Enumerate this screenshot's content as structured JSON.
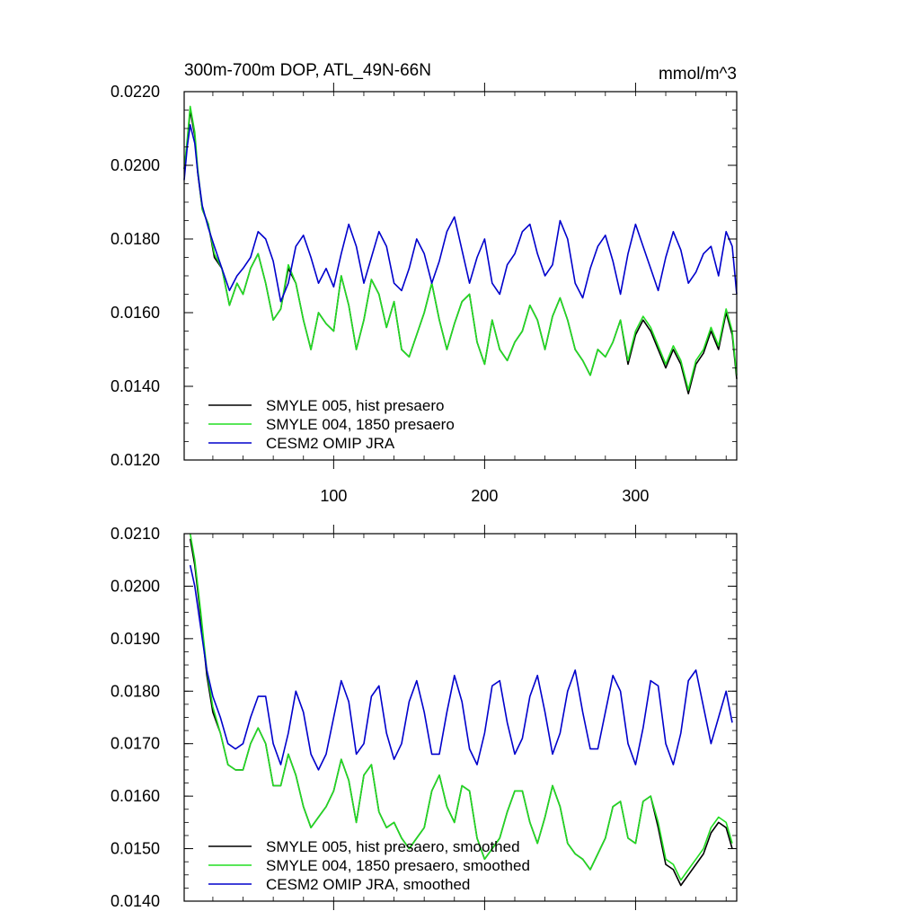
{
  "chart_data": [
    {
      "type": "line",
      "title": "300m-700m DOP, ATL_49N-66N",
      "units": "mmol/m^3",
      "xlim": [
        1,
        367
      ],
      "ylim": [
        0.012,
        0.022
      ],
      "x_ticks": [
        100,
        200,
        300
      ],
      "x_tick_labels": [
        "100",
        "200",
        "300"
      ],
      "y_ticks": [
        0.012,
        0.014,
        0.016,
        0.018,
        0.02,
        0.022
      ],
      "y_tick_labels": [
        "0.0120",
        "0.0140",
        "0.0160",
        "0.0180",
        "0.0200",
        "0.0220"
      ],
      "x_minor_step": 20,
      "y_minor_step": 0.0005,
      "legend": "bottom-left",
      "series": [
        {
          "name": "SMYLE 005, hist presaero",
          "color": "#000000",
          "x": [
            1,
            3,
            5,
            8,
            10,
            13,
            17,
            21,
            26,
            31,
            36,
            40,
            45,
            50,
            55,
            60,
            65,
            70,
            75,
            80,
            85,
            90,
            95,
            100,
            105,
            110,
            115,
            120,
            125,
            130,
            135,
            140,
            145,
            150,
            155,
            160,
            165,
            170,
            175,
            180,
            185,
            190,
            195,
            200,
            205,
            210,
            215,
            220,
            225,
            230,
            235,
            240,
            245,
            250,
            255,
            260,
            265,
            270,
            275,
            280,
            285,
            290,
            295,
            300,
            305,
            310,
            315,
            320,
            325,
            330,
            335,
            340,
            345,
            350,
            355,
            360,
            364,
            367
          ],
          "values": [
            0.0199,
            0.0206,
            0.0215,
            0.0208,
            0.0198,
            0.0188,
            0.0184,
            0.0175,
            0.0172,
            0.0162,
            0.0168,
            0.0165,
            0.0172,
            0.0176,
            0.0168,
            0.0158,
            0.0161,
            0.0172,
            0.0168,
            0.0158,
            0.015,
            0.016,
            0.0157,
            0.0155,
            0.017,
            0.0162,
            0.015,
            0.0158,
            0.0169,
            0.0165,
            0.0156,
            0.0163,
            0.015,
            0.0148,
            0.0154,
            0.016,
            0.0168,
            0.0158,
            0.015,
            0.0157,
            0.0163,
            0.0165,
            0.0152,
            0.0146,
            0.0158,
            0.015,
            0.0147,
            0.0152,
            0.0155,
            0.0162,
            0.0158,
            0.015,
            0.0159,
            0.0164,
            0.0158,
            0.015,
            0.0147,
            0.0143,
            0.015,
            0.0148,
            0.0152,
            0.0158,
            0.0146,
            0.0154,
            0.0158,
            0.0155,
            0.015,
            0.0145,
            0.015,
            0.0146,
            0.0138,
            0.0146,
            0.0149,
            0.0155,
            0.015,
            0.016,
            0.0154,
            0.0142
          ]
        },
        {
          "name": "SMYLE 004, 1850 presaero",
          "color": "#22dd22",
          "x": [
            1,
            3,
            5,
            8,
            10,
            13,
            17,
            21,
            26,
            31,
            36,
            40,
            45,
            50,
            55,
            60,
            65,
            70,
            75,
            80,
            85,
            90,
            95,
            100,
            105,
            110,
            115,
            120,
            125,
            130,
            135,
            140,
            145,
            150,
            155,
            160,
            165,
            170,
            175,
            180,
            185,
            190,
            195,
            200,
            205,
            210,
            215,
            220,
            225,
            230,
            235,
            240,
            245,
            250,
            255,
            260,
            265,
            270,
            275,
            280,
            285,
            290,
            295,
            300,
            305,
            310,
            315,
            320,
            325,
            330,
            335,
            340,
            345,
            350,
            355,
            360,
            364,
            367
          ],
          "values": [
            0.0199,
            0.0207,
            0.0216,
            0.0209,
            0.0199,
            0.0188,
            0.0184,
            0.0176,
            0.0172,
            0.0162,
            0.0168,
            0.0165,
            0.0172,
            0.0176,
            0.0168,
            0.0158,
            0.0161,
            0.0173,
            0.0168,
            0.0158,
            0.015,
            0.016,
            0.0157,
            0.0155,
            0.017,
            0.0162,
            0.015,
            0.0158,
            0.0169,
            0.0165,
            0.0156,
            0.0163,
            0.015,
            0.0148,
            0.0154,
            0.016,
            0.0168,
            0.0158,
            0.015,
            0.0157,
            0.0163,
            0.0165,
            0.0152,
            0.0146,
            0.0158,
            0.015,
            0.0147,
            0.0152,
            0.0155,
            0.0162,
            0.0158,
            0.015,
            0.0159,
            0.0164,
            0.0158,
            0.015,
            0.0147,
            0.0143,
            0.015,
            0.0148,
            0.0152,
            0.0158,
            0.0147,
            0.0155,
            0.0159,
            0.0156,
            0.0151,
            0.0146,
            0.0151,
            0.0147,
            0.0139,
            0.0147,
            0.015,
            0.0156,
            0.0151,
            0.0161,
            0.0155,
            0.0143
          ]
        },
        {
          "name": "CESM2 OMIP JRA",
          "color": "#0000cc",
          "x": [
            1,
            3,
            5,
            8,
            10,
            13,
            17,
            21,
            26,
            31,
            36,
            40,
            45,
            50,
            55,
            60,
            65,
            70,
            75,
            80,
            85,
            90,
            95,
            100,
            105,
            110,
            115,
            120,
            125,
            130,
            135,
            140,
            145,
            150,
            155,
            160,
            165,
            170,
            175,
            180,
            185,
            190,
            195,
            200,
            205,
            210,
            215,
            220,
            225,
            230,
            235,
            240,
            245,
            250,
            255,
            260,
            265,
            270,
            275,
            280,
            285,
            290,
            295,
            300,
            305,
            310,
            315,
            320,
            325,
            330,
            335,
            340,
            345,
            350,
            355,
            360,
            364,
            367
          ],
          "values": [
            0.0196,
            0.0205,
            0.0211,
            0.0206,
            0.0198,
            0.0189,
            0.0183,
            0.0178,
            0.0172,
            0.0166,
            0.017,
            0.0172,
            0.0175,
            0.0182,
            0.018,
            0.0174,
            0.0163,
            0.0168,
            0.0178,
            0.0181,
            0.0175,
            0.0168,
            0.0172,
            0.0167,
            0.0176,
            0.0184,
            0.0178,
            0.0168,
            0.0175,
            0.0182,
            0.0178,
            0.0168,
            0.0166,
            0.0172,
            0.018,
            0.0176,
            0.0168,
            0.0174,
            0.0182,
            0.0186,
            0.0177,
            0.0168,
            0.0175,
            0.018,
            0.0168,
            0.0165,
            0.0173,
            0.0176,
            0.0182,
            0.0184,
            0.0176,
            0.017,
            0.0173,
            0.0185,
            0.018,
            0.0168,
            0.0164,
            0.0172,
            0.0178,
            0.0181,
            0.0174,
            0.0165,
            0.0176,
            0.0184,
            0.0178,
            0.0172,
            0.0166,
            0.0175,
            0.0182,
            0.0177,
            0.0168,
            0.0171,
            0.0176,
            0.0178,
            0.017,
            0.0182,
            0.0178,
            0.0165
          ]
        }
      ]
    },
    {
      "type": "line",
      "title": "",
      "xlim": [
        1,
        367
      ],
      "ylim": [
        0.014,
        0.021
      ],
      "x_ticks": [
        100,
        200,
        300
      ],
      "x_tick_labels": [
        "",
        "",
        ""
      ],
      "y_ticks": [
        0.014,
        0.015,
        0.016,
        0.017,
        0.018,
        0.019,
        0.02,
        0.021
      ],
      "y_tick_labels": [
        "0.0140",
        "0.0150",
        "0.0160",
        "0.0170",
        "0.0180",
        "0.0190",
        "0.0200",
        "0.0210"
      ],
      "x_minor_step": 20,
      "y_minor_step": 0.00025,
      "legend": "bottom-left",
      "series": [
        {
          "name": "SMYLE 005, hist presaero, smoothed",
          "color": "#000000",
          "x": [
            5,
            8,
            12,
            16,
            20,
            25,
            30,
            35,
            40,
            45,
            50,
            55,
            60,
            65,
            70,
            75,
            80,
            85,
            90,
            95,
            100,
            105,
            110,
            115,
            120,
            125,
            130,
            135,
            140,
            145,
            150,
            155,
            160,
            165,
            170,
            175,
            180,
            185,
            190,
            195,
            200,
            205,
            210,
            215,
            220,
            225,
            230,
            235,
            240,
            245,
            250,
            255,
            260,
            265,
            270,
            275,
            280,
            285,
            290,
            295,
            300,
            305,
            310,
            315,
            320,
            325,
            330,
            335,
            340,
            345,
            350,
            355,
            360,
            364
          ],
          "values": [
            0.0209,
            0.0204,
            0.0194,
            0.0183,
            0.0176,
            0.0172,
            0.0166,
            0.0165,
            0.0165,
            0.017,
            0.0173,
            0.017,
            0.0162,
            0.0162,
            0.0168,
            0.0164,
            0.0158,
            0.0154,
            0.0156,
            0.0158,
            0.0161,
            0.0167,
            0.0163,
            0.0155,
            0.0164,
            0.0166,
            0.0157,
            0.0154,
            0.0155,
            0.0152,
            0.015,
            0.0152,
            0.0154,
            0.0161,
            0.0164,
            0.0158,
            0.0155,
            0.0162,
            0.0161,
            0.0152,
            0.0148,
            0.015,
            0.0152,
            0.0157,
            0.0161,
            0.0161,
            0.0155,
            0.0151,
            0.0156,
            0.0162,
            0.0158,
            0.0151,
            0.0149,
            0.0148,
            0.0146,
            0.0149,
            0.0152,
            0.0158,
            0.0159,
            0.0152,
            0.0151,
            0.0159,
            0.016,
            0.0154,
            0.0147,
            0.0146,
            0.0143,
            0.0145,
            0.0147,
            0.0149,
            0.0153,
            0.0155,
            0.0154,
            0.015
          ]
        },
        {
          "name": "SMYLE 004, 1850 presaero, smoothed",
          "color": "#22dd22",
          "x": [
            5,
            8,
            12,
            16,
            20,
            25,
            30,
            35,
            40,
            45,
            50,
            55,
            60,
            65,
            70,
            75,
            80,
            85,
            90,
            95,
            100,
            105,
            110,
            115,
            120,
            125,
            130,
            135,
            140,
            145,
            150,
            155,
            160,
            165,
            170,
            175,
            180,
            185,
            190,
            195,
            200,
            205,
            210,
            215,
            220,
            225,
            230,
            235,
            240,
            245,
            250,
            255,
            260,
            265,
            270,
            275,
            280,
            285,
            290,
            295,
            300,
            305,
            310,
            315,
            320,
            325,
            330,
            335,
            340,
            345,
            350,
            355,
            360,
            364
          ],
          "values": [
            0.021,
            0.0205,
            0.0195,
            0.0184,
            0.0177,
            0.0172,
            0.0166,
            0.0165,
            0.0165,
            0.017,
            0.0173,
            0.017,
            0.0162,
            0.0162,
            0.0168,
            0.0164,
            0.0158,
            0.0154,
            0.0156,
            0.0158,
            0.0161,
            0.0167,
            0.0163,
            0.0155,
            0.0164,
            0.0166,
            0.0157,
            0.0154,
            0.0155,
            0.0152,
            0.015,
            0.0152,
            0.0154,
            0.0161,
            0.0164,
            0.0158,
            0.0155,
            0.0162,
            0.0161,
            0.0152,
            0.0148,
            0.015,
            0.0152,
            0.0157,
            0.0161,
            0.0161,
            0.0155,
            0.0151,
            0.0156,
            0.0162,
            0.0158,
            0.0151,
            0.0149,
            0.0148,
            0.0146,
            0.0149,
            0.0152,
            0.0158,
            0.0159,
            0.0152,
            0.0151,
            0.0159,
            0.016,
            0.0155,
            0.0148,
            0.0147,
            0.0144,
            0.0146,
            0.0148,
            0.015,
            0.0154,
            0.0156,
            0.0155,
            0.0151
          ]
        },
        {
          "name": "CESM2 OMIP JRA, smoothed",
          "color": "#0000cc",
          "x": [
            5,
            8,
            12,
            16,
            20,
            25,
            30,
            35,
            40,
            45,
            50,
            55,
            60,
            65,
            70,
            75,
            80,
            85,
            90,
            95,
            100,
            105,
            110,
            115,
            120,
            125,
            130,
            135,
            140,
            145,
            150,
            155,
            160,
            165,
            170,
            175,
            180,
            185,
            190,
            195,
            200,
            205,
            210,
            215,
            220,
            225,
            230,
            235,
            240,
            245,
            250,
            255,
            260,
            265,
            270,
            275,
            280,
            285,
            290,
            295,
            300,
            305,
            310,
            315,
            320,
            325,
            330,
            335,
            340,
            345,
            350,
            355,
            360,
            364
          ],
          "values": [
            0.0204,
            0.02,
            0.0192,
            0.0184,
            0.0179,
            0.0175,
            0.017,
            0.0169,
            0.017,
            0.0175,
            0.0179,
            0.0179,
            0.017,
            0.0166,
            0.0172,
            0.018,
            0.0176,
            0.0168,
            0.0165,
            0.0168,
            0.0175,
            0.0182,
            0.0178,
            0.0168,
            0.017,
            0.0179,
            0.0181,
            0.0172,
            0.0167,
            0.017,
            0.0178,
            0.0182,
            0.0176,
            0.0168,
            0.0168,
            0.0176,
            0.0183,
            0.0178,
            0.0169,
            0.0166,
            0.0172,
            0.0181,
            0.0182,
            0.0174,
            0.0168,
            0.0171,
            0.0179,
            0.0183,
            0.0176,
            0.0168,
            0.0172,
            0.018,
            0.0184,
            0.0176,
            0.0169,
            0.0169,
            0.0176,
            0.0183,
            0.018,
            0.017,
            0.0166,
            0.0173,
            0.0182,
            0.0181,
            0.017,
            0.0166,
            0.0172,
            0.0182,
            0.0184,
            0.0177,
            0.017,
            0.0175,
            0.018,
            0.0174
          ]
        }
      ]
    }
  ]
}
